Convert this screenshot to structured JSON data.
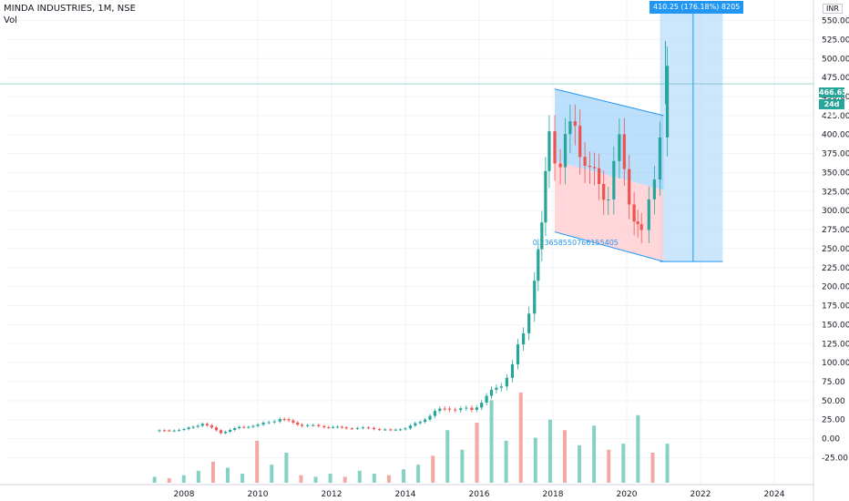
{
  "header": {
    "symbol_line": "MINDA INDUSTRIES, 1M, NSE",
    "volume_label": "Vol"
  },
  "price_scale": {
    "currency": "INR",
    "last_price": "466.65",
    "countdown": "24d 23h",
    "last_price_color": "#26a69a"
  },
  "drawings": {
    "range_label": "410.25 (176.18%) 8205",
    "channel_label": "0.23658550766155405"
  },
  "colors": {
    "up": "#26a69a",
    "down": "#ef5350",
    "up_volume": "#86d0c6",
    "down_volume": "#f4a8a6",
    "range_fill": "#bbdefb",
    "range_line": "#2196f3",
    "grid": "#f0f3fa"
  },
  "chart_data": {
    "type": "candlestick",
    "title": "MINDA INDUSTRIES, 1M, NSE",
    "xlabel": "",
    "ylabel": "",
    "ylim": [
      -40,
      565
    ],
    "x_tick_labels": [
      "2008",
      "2010",
      "2012",
      "2014",
      "2016",
      "2018",
      "2020",
      "2022",
      "2024"
    ],
    "y_tick_labels": [
      "-25.00",
      "0.00",
      "25.00",
      "50.00",
      "75.00",
      "100.00",
      "125.00",
      "150.00",
      "175.00",
      "200.00",
      "225.00",
      "250.00",
      "275.00",
      "300.00",
      "325.00",
      "350.00",
      "375.00",
      "400.00",
      "425.00",
      "450.00",
      "475.00",
      "500.00",
      "525.00",
      "550.00"
    ],
    "y_tick_values": [
      -25,
      0,
      25,
      50,
      75,
      100,
      125,
      150,
      175,
      200,
      225,
      250,
      275,
      300,
      325,
      350,
      375,
      400,
      425,
      450,
      475,
      500,
      525,
      550
    ],
    "x_tick_years": [
      2008,
      2010,
      2012,
      2014,
      2016,
      2018,
      2020,
      2022,
      2024
    ],
    "series": [
      {
        "key": "price",
        "points": [
          {
            "year": 2007.2,
            "close": 10
          },
          {
            "year": 2008.0,
            "close": 12
          },
          {
            "year": 2008.5,
            "close": 20
          },
          {
            "year": 2009.0,
            "close": 8
          },
          {
            "year": 2009.5,
            "close": 15
          },
          {
            "year": 2010.0,
            "close": 18
          },
          {
            "year": 2010.6,
            "close": 26
          },
          {
            "year": 2011.2,
            "close": 18
          },
          {
            "year": 2011.8,
            "close": 16
          },
          {
            "year": 2012.4,
            "close": 14
          },
          {
            "year": 2013.0,
            "close": 14
          },
          {
            "year": 2013.6,
            "close": 11
          },
          {
            "year": 2014.0,
            "close": 14
          },
          {
            "year": 2014.4,
            "close": 22
          },
          {
            "year": 2014.8,
            "close": 36
          },
          {
            "year": 2015.2,
            "close": 40
          },
          {
            "year": 2015.8,
            "close": 38
          },
          {
            "year": 2016.2,
            "close": 55
          },
          {
            "year": 2016.6,
            "close": 72
          },
          {
            "year": 2016.9,
            "close": 95
          },
          {
            "year": 2017.2,
            "close": 140
          },
          {
            "year": 2017.5,
            "close": 210
          },
          {
            "year": 2017.7,
            "close": 270
          },
          {
            "year": 2017.9,
            "close": 410
          },
          {
            "year": 2018.2,
            "close": 360
          },
          {
            "year": 2018.6,
            "close": 420
          },
          {
            "year": 2019.0,
            "close": 340
          },
          {
            "year": 2019.5,
            "close": 330
          },
          {
            "year": 2019.8,
            "close": 380
          },
          {
            "year": 2020.2,
            "close": 300
          },
          {
            "year": 2020.4,
            "close": 260
          },
          {
            "year": 2020.6,
            "close": 310
          },
          {
            "year": 2020.9,
            "close": 410
          },
          {
            "year": 2021.1,
            "close": 466.65
          }
        ]
      },
      {
        "key": "volume",
        "values_relative": [
          4,
          3,
          5,
          8,
          14,
          10,
          6,
          28,
          12,
          20,
          5,
          4,
          6,
          4,
          8,
          6,
          5,
          9,
          12,
          18,
          35,
          22,
          40,
          55,
          28,
          60,
          30,
          42,
          35,
          25,
          38,
          22,
          26,
          45,
          20,
          26
        ]
      }
    ]
  }
}
